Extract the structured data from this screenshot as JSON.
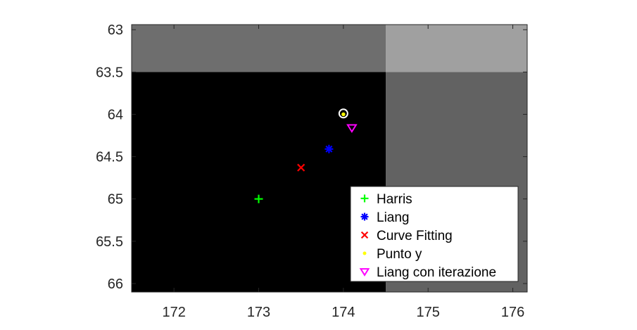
{
  "chart_data": {
    "type": "scatter",
    "title": "",
    "xlabel": "",
    "ylabel": "",
    "xlim": [
      171.5,
      176.17
    ],
    "ylim": [
      62.94,
      66.1
    ],
    "y_reversed": true,
    "grid": false,
    "x_ticks": [
      "172",
      "173",
      "174",
      "175",
      "176"
    ],
    "y_ticks": [
      "63",
      "63.5",
      "64",
      "64.5",
      "65",
      "65.5",
      "66"
    ],
    "background_image": {
      "description_colors": "grayscale pixel cells",
      "cells": [
        {
          "x": [
            171.5,
            174.5
          ],
          "y": [
            62.94,
            63.5
          ],
          "color": "#6e6e6e"
        },
        {
          "x": [
            174.5,
            176.17
          ],
          "y": [
            62.94,
            63.5
          ],
          "color": "#a0a0a0"
        },
        {
          "x": [
            171.5,
            174.5
          ],
          "y": [
            63.5,
            66.1
          ],
          "color": "#000000"
        },
        {
          "x": [
            174.5,
            176.17
          ],
          "y": [
            63.5,
            66.1
          ],
          "color": "#626262"
        }
      ]
    },
    "series": [
      {
        "name": "Harris",
        "marker": "plus",
        "color": "#00ff00",
        "points": [
          [
            173.0,
            65.0
          ]
        ]
      },
      {
        "name": "Liang",
        "marker": "asterisk",
        "color": "#0000ff",
        "points": [
          [
            173.83,
            64.41
          ]
        ]
      },
      {
        "name": "Curve Fitting",
        "marker": "x",
        "color": "#ff0000",
        "points": [
          [
            173.5,
            64.63
          ]
        ]
      },
      {
        "name": "Punto y",
        "marker": "dot",
        "color": "#ffff00",
        "points": [
          [
            174.0,
            64.0
          ]
        ]
      },
      {
        "name": "Liang con iterazione",
        "marker": "triangle-down",
        "color": "#ff00ff",
        "points": [
          [
            174.1,
            64.16
          ]
        ]
      }
    ],
    "extra_marks": [
      {
        "marker": "circle",
        "color": "#ffffff",
        "x": 174.0,
        "y": 63.99
      }
    ],
    "legend_position": "bottom-right"
  }
}
